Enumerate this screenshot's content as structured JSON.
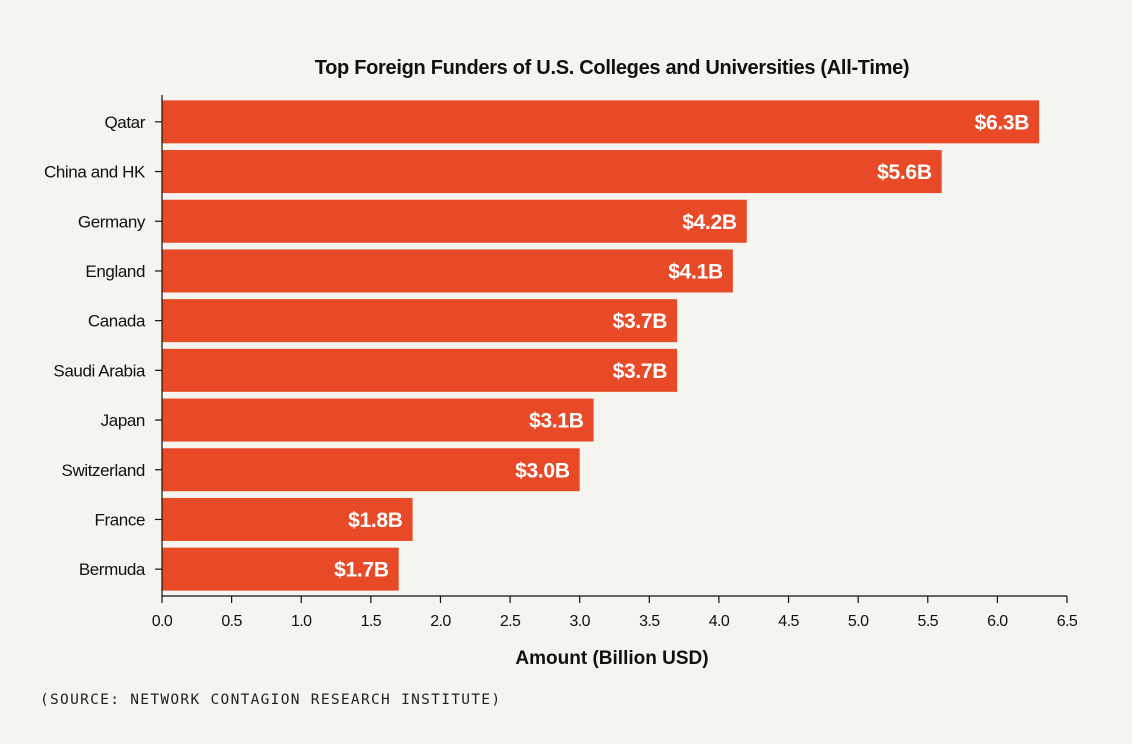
{
  "chart_data": {
    "type": "bar",
    "orientation": "horizontal",
    "title": "Top Foreign Funders of U.S. Colleges and Universities (All-Time)",
    "xlabel": "Amount (Billion USD)",
    "ylabel": "",
    "xlim": [
      0,
      6.5
    ],
    "x_ticks": [
      "0.0",
      "0.5",
      "1.0",
      "1.5",
      "2.0",
      "2.5",
      "3.0",
      "3.5",
      "4.0",
      "4.5",
      "5.0",
      "5.5",
      "6.0",
      "6.5"
    ],
    "categories": [
      "Qatar",
      "China and HK",
      "Germany",
      "England",
      "Canada",
      "Saudi Arabia",
      "Japan",
      "Switzerland",
      "France",
      "Bermuda"
    ],
    "values": [
      6.3,
      5.6,
      4.2,
      4.1,
      3.7,
      3.7,
      3.1,
      3.0,
      1.8,
      1.7
    ],
    "data_labels": [
      "$6.3B",
      "$5.6B",
      "$4.2B",
      "$4.1B",
      "$3.7B",
      "$3.7B",
      "$3.1B",
      "$3.0B",
      "$1.8B",
      "$1.7B"
    ],
    "bar_color": "#e84a27",
    "grid": false
  },
  "source": "(SOURCE: NETWORK CONTAGION RESEARCH INSTITUTE)"
}
